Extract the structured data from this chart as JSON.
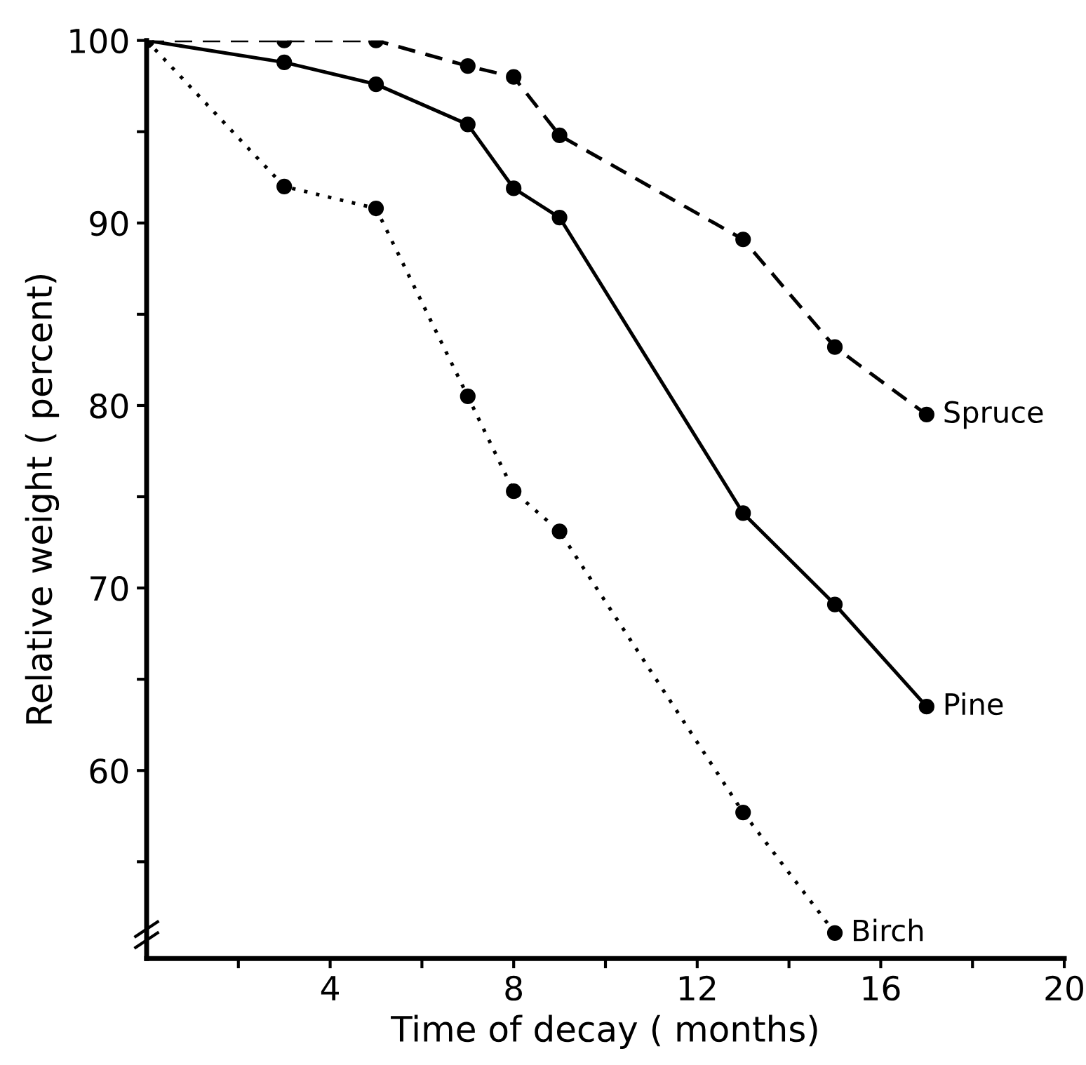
{
  "chart_data": {
    "type": "line",
    "xlabel": "Time of decay ( months)",
    "ylabel": "Relative weight ( percent)",
    "xlim": [
      0,
      20
    ],
    "ylim": [
      49.7,
      100
    ],
    "xticks": [
      {
        "value": 2,
        "label": null
      },
      4,
      {
        "value": 6,
        "label": null
      },
      8,
      {
        "value": 10,
        "label": null
      },
      12,
      {
        "value": 14,
        "label": null
      },
      16,
      {
        "value": 18,
        "label": null
      },
      20
    ],
    "yticks": [
      {
        "value": 55,
        "label": null
      },
      60,
      {
        "value": 65,
        "label": null
      },
      70,
      {
        "value": 75,
        "label": null
      },
      80,
      {
        "value": 85,
        "label": null
      },
      90,
      {
        "value": 95,
        "label": null
      },
      100
    ],
    "grid": false,
    "legend": false,
    "marker": "circle",
    "series": [
      {
        "name": "Spruce",
        "color": "#000000",
        "line_style": "dashed",
        "x": [
          0,
          3,
          5,
          7,
          8,
          9,
          13,
          15,
          17
        ],
        "values": [
          100,
          100,
          100,
          98.6,
          98.0,
          94.8,
          89.1,
          83.2,
          79.5
        ]
      },
      {
        "name": "Pine",
        "color": "#000000",
        "line_style": "solid",
        "x": [
          0,
          3,
          5,
          7,
          8,
          9,
          13,
          15,
          17
        ],
        "values": [
          100,
          98.8,
          97.6,
          95.4,
          91.9,
          90.3,
          74.1,
          69.1,
          63.5
        ]
      },
      {
        "name": "Birch",
        "color": "#000000",
        "line_style": "dotted",
        "x": [
          0,
          3,
          5,
          7,
          8,
          9,
          13,
          15
        ],
        "values": [
          100,
          92.0,
          90.8,
          80.5,
          75.3,
          73.1,
          57.7,
          51.1
        ]
      }
    ]
  }
}
